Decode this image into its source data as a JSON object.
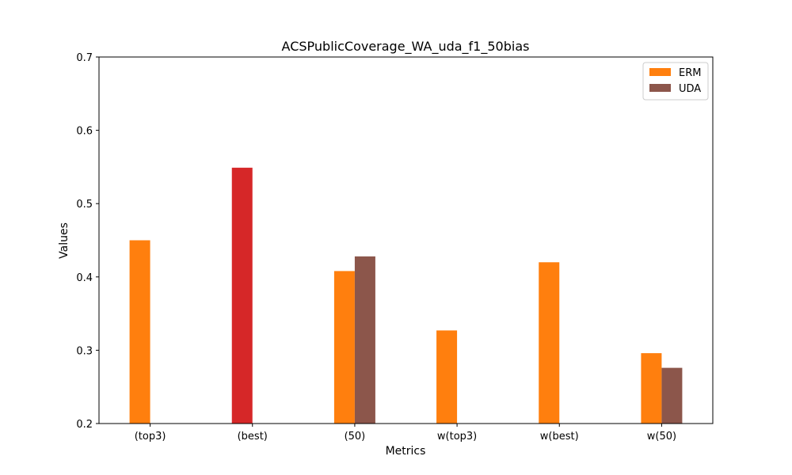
{
  "chart_data": {
    "type": "bar",
    "title": "ACSPublicCoverage_WA_uda_f1_50bias",
    "xlabel": "Metrics",
    "ylabel": "Values",
    "ylim": [
      0.2,
      0.7
    ],
    "yticks": [
      0.2,
      0.3,
      0.4,
      0.5,
      0.6,
      0.7
    ],
    "ytick_labels": [
      "0.2",
      "0.3",
      "0.4",
      "0.5",
      "0.6",
      "0.7"
    ],
    "categories": [
      "(top3)",
      "(best)",
      "(50)",
      "w(top3)",
      "w(best)",
      "w(50)"
    ],
    "series": [
      {
        "name": "ERM",
        "color": "#ff7f0e",
        "values": [
          0.45,
          0.549,
          0.408,
          0.327,
          0.42,
          0.296
        ]
      },
      {
        "name": "UDA",
        "color": "#8c564b",
        "values": [
          null,
          null,
          0.428,
          null,
          null,
          0.276
        ]
      }
    ],
    "highlight": {
      "category": "(best)",
      "series": "ERM",
      "color": "#d62728"
    },
    "legend": {
      "position": "top-right",
      "entries": [
        "ERM",
        "UDA"
      ]
    },
    "grid": false
  }
}
